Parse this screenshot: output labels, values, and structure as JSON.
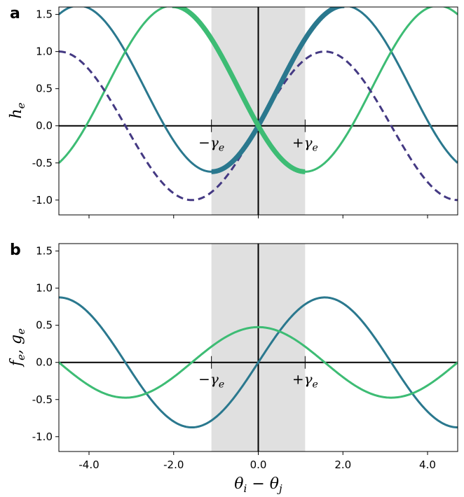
{
  "chart_data": [
    {
      "panel": "a",
      "type": "line",
      "ylabel": "h_e",
      "xlim": [
        -4.7124,
        4.7124
      ],
      "ylim": [
        -1.2,
        1.6
      ],
      "yticks": [
        "-1.0",
        "-0.5",
        "0.0",
        "0.5",
        "1.0",
        "1.5"
      ],
      "ytick_values": [
        -1.0,
        -0.5,
        0.0,
        0.5,
        1.0,
        1.5
      ],
      "shaded_region": [
        -1.1071,
        1.1071
      ],
      "annotations": [
        "−γ_e",
        "+γ_e"
      ],
      "colors": {
        "teal": "#2a788e",
        "green": "#3dbc74",
        "purple": "#443983",
        "shade": "#e0e0e0"
      },
      "series": [
        {
          "color": "teal",
          "style": "solid",
          "formula": "sin(x) + 0.5*(1 - cos(x))",
          "highlight_range": [
            -1.1071,
            2.0344
          ]
        },
        {
          "color": "green",
          "style": "solid",
          "formula": "-sin(x) + 0.5*(1 - cos(x))",
          "highlight_range": [
            -2.0344,
            1.1071
          ]
        },
        {
          "color": "purple",
          "style": "dashed",
          "formula": "sin(x)"
        }
      ]
    },
    {
      "panel": "b",
      "type": "line",
      "xlabel": "θ_i − θ_j",
      "ylabel": "f_e, g_e",
      "xlim": [
        -4.7124,
        4.7124
      ],
      "ylim": [
        -1.2,
        1.6
      ],
      "xticks": [
        "-4.0",
        "-2.0",
        "0.0",
        "2.0",
        "4.0"
      ],
      "xtick_values": [
        -4.0,
        -2.0,
        0.0,
        2.0,
        4.0
      ],
      "yticks": [
        "-1.0",
        "-0.5",
        "0.0",
        "0.5",
        "1.0",
        "1.5"
      ],
      "ytick_values": [
        -1.0,
        -0.5,
        0.0,
        0.5,
        1.0,
        1.5
      ],
      "shaded_region": [
        -1.1071,
        1.1071
      ],
      "annotations": [
        "−γ_e",
        "+γ_e"
      ],
      "colors": {
        "teal": "#2a788e",
        "green": "#3dbc74",
        "shade": "#e0e0e0"
      },
      "series": [
        {
          "color": "teal",
          "style": "solid",
          "formula": "0.875*sin(x)"
        },
        {
          "color": "green",
          "style": "solid",
          "formula": "0.475*cos(x)"
        }
      ]
    }
  ]
}
